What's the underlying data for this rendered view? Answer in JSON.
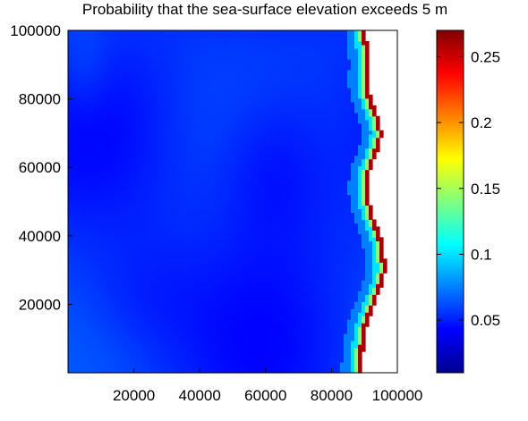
{
  "chart_data": {
    "type": "heatmap",
    "title": "Probability that the sea-surface elevation exceeds 5 m",
    "xlabel": "",
    "ylabel": "",
    "x_range": [
      0,
      100000
    ],
    "y_range": [
      0,
      100000
    ],
    "x_ticks": [
      {
        "value": 20000,
        "label": "20000"
      },
      {
        "value": 40000,
        "label": "40000"
      },
      {
        "value": 60000,
        "label": "60000"
      },
      {
        "value": 80000,
        "label": "80000"
      },
      {
        "value": 100000,
        "label": "100000"
      }
    ],
    "y_ticks": [
      {
        "value": 20000,
        "label": "20000"
      },
      {
        "value": 40000,
        "label": "40000"
      },
      {
        "value": 60000,
        "label": "60000"
      },
      {
        "value": 80000,
        "label": "80000"
      },
      {
        "value": 100000,
        "label": "100000"
      }
    ],
    "colorbar": {
      "range": [
        0.01,
        0.27
      ],
      "ticks": [
        {
          "value": 0.05,
          "label": "0.05"
        },
        {
          "value": 0.1,
          "label": "0.1"
        },
        {
          "value": 0.15,
          "label": "0.15"
        },
        {
          "value": 0.2,
          "label": "0.2"
        },
        {
          "value": 0.25,
          "label": "0.25"
        }
      ],
      "colormap": "jet"
    },
    "grid": false,
    "shoreline": [
      [
        100000,
        90500
      ],
      [
        95000,
        91000
      ],
      [
        90000,
        91500
      ],
      [
        85000,
        91000
      ],
      [
        80000,
        92000
      ],
      [
        75000,
        94000
      ],
      [
        70000,
        95500
      ],
      [
        65000,
        94000
      ],
      [
        60000,
        92000
      ],
      [
        55000,
        91000
      ],
      [
        50000,
        91500
      ],
      [
        45000,
        93000
      ],
      [
        40000,
        95000
      ],
      [
        35000,
        96000
      ],
      [
        30000,
        96500
      ],
      [
        25000,
        95000
      ],
      [
        20000,
        93000
      ],
      [
        15000,
        91000
      ],
      [
        10000,
        90000
      ],
      [
        5000,
        89500
      ],
      [
        2000,
        89000
      ]
    ]
  }
}
